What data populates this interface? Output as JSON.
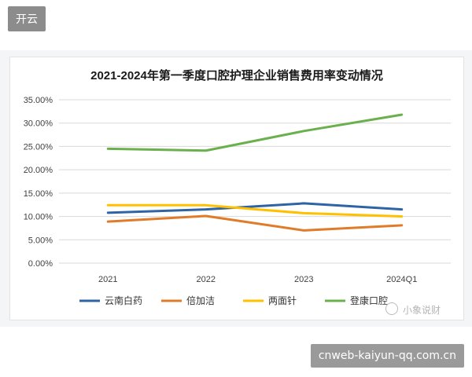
{
  "badge": "开云",
  "watermark": "小象说财",
  "footer_link": "cnweb-kaiyun-qq.com.cn",
  "chart_data": {
    "type": "line",
    "title": "2021-2024年第一季度口腔护理企业销售费用率变动情况",
    "categories": [
      "2021",
      "2022",
      "2023",
      "2024Q1"
    ],
    "y_tick_labels": [
      "0.00%",
      "5.00%",
      "10.00%",
      "15.00%",
      "20.00%",
      "25.00%",
      "30.00%",
      "35.00%"
    ],
    "ylim": [
      0,
      35
    ],
    "grid": true,
    "legend_position": "bottom",
    "series": [
      {
        "name": "云南白药",
        "color": "#2e64a5",
        "values": [
          10.8,
          11.5,
          12.8,
          11.5
        ]
      },
      {
        "name": "倍加洁",
        "color": "#e07b2a",
        "values": [
          8.9,
          10.1,
          7.0,
          8.1
        ]
      },
      {
        "name": "两面针",
        "color": "#ffc000",
        "values": [
          12.4,
          12.4,
          10.7,
          10.0
        ]
      },
      {
        "name": "登康口腔",
        "color": "#6ab04c",
        "values": [
          24.5,
          24.1,
          28.3,
          31.8
        ]
      }
    ]
  }
}
